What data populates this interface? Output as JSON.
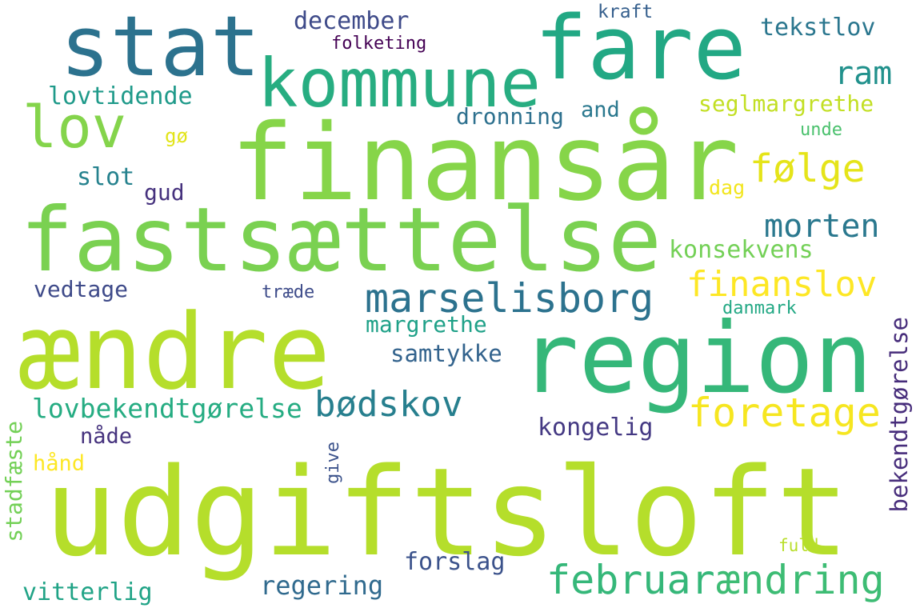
{
  "words": [
    {
      "text": "udgiftsloft",
      "color": "#b5de2b"
    },
    {
      "text": "finansår",
      "color": "#86d549"
    },
    {
      "text": "fastsættelse",
      "color": "#7ad151"
    },
    {
      "text": "ændre",
      "color": "#b5de2b"
    },
    {
      "text": "region",
      "color": "#35b779"
    },
    {
      "text": "fare",
      "color": "#22a884"
    },
    {
      "text": "stat",
      "color": "#2c728e"
    },
    {
      "text": "kommune",
      "color": "#27ad81"
    },
    {
      "text": "lov",
      "color": "#84d44b"
    },
    {
      "text": "marselisborg",
      "color": "#2c728e"
    },
    {
      "text": "februar",
      "color": "#35b779"
    },
    {
      "text": "ændring",
      "color": "#3dbc74"
    },
    {
      "text": "finanslov",
      "color": "#fde725"
    },
    {
      "text": "foretage",
      "color": "#f6e620"
    },
    {
      "text": "bødskov",
      "color": "#277f8e"
    },
    {
      "text": "følge",
      "color": "#e5e419"
    },
    {
      "text": "morten",
      "color": "#2a788e"
    },
    {
      "text": "lovbekendtgørelse",
      "color": "#25ac82"
    },
    {
      "text": "ram",
      "color": "#21918c"
    },
    {
      "text": "december",
      "color": "#3e4a89"
    },
    {
      "text": "tekstlov",
      "color": "#2a768e"
    },
    {
      "text": "lovtidende",
      "color": "#1f9a8a"
    },
    {
      "text": "seglmargrethe",
      "color": "#c2df23"
    },
    {
      "text": "dronning",
      "color": "#2d708e"
    },
    {
      "text": "and",
      "color": "#2a788e"
    },
    {
      "text": "slot",
      "color": "#26828e"
    },
    {
      "text": "gud",
      "color": "#46327e"
    },
    {
      "text": "konsekvens",
      "color": "#73d056"
    },
    {
      "text": "vedtage",
      "color": "#3e4a89"
    },
    {
      "text": "margrethe",
      "color": "#1fa188"
    },
    {
      "text": "samtykke",
      "color": "#33638d"
    },
    {
      "text": "kongelig",
      "color": "#443983"
    },
    {
      "text": "nåde",
      "color": "#46337e"
    },
    {
      "text": "hånd",
      "color": "#fde725"
    },
    {
      "text": "forslag",
      "color": "#3b528b"
    },
    {
      "text": "regering",
      "color": "#306a8e"
    },
    {
      "text": "vitterlig",
      "color": "#20a386"
    },
    {
      "text": "bekendtgørelse",
      "color": "#472d7b"
    },
    {
      "text": "stadfæste",
      "color": "#73d056"
    },
    {
      "text": "give",
      "color": "#3b528b"
    },
    {
      "text": "kraft",
      "color": "#355f8d"
    },
    {
      "text": "folketing",
      "color": "#440154"
    },
    {
      "text": "gø",
      "color": "#e2e418"
    },
    {
      "text": "dag",
      "color": "#f2e51d"
    },
    {
      "text": "unde",
      "color": "#4ac16d"
    },
    {
      "text": "træde",
      "color": "#3e4c8a"
    },
    {
      "text": "danmark",
      "color": "#22a884"
    },
    {
      "text": "fuld",
      "color": "#b8de29"
    }
  ]
}
